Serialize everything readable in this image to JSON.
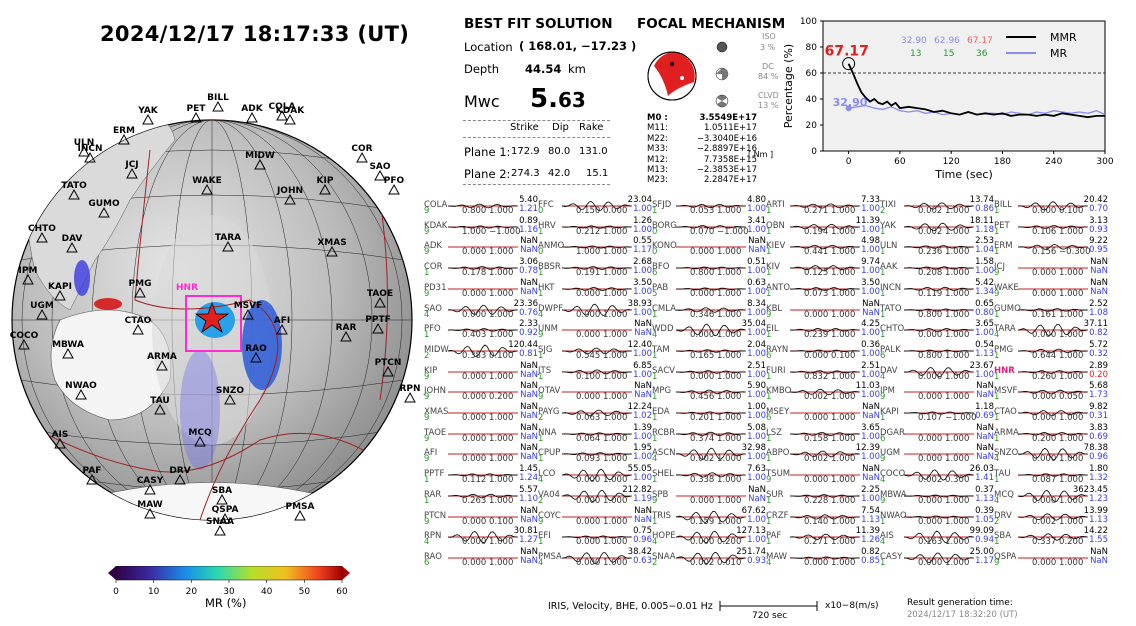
{
  "datetime": "2024/12/17  18:17:33 (UT)",
  "map": {
    "highlight_station": "HNR",
    "stations": [
      "YAK",
      "BILL",
      "PET",
      "ADK",
      "COLA",
      "KDAK",
      "ULN",
      "INCN",
      "ERM",
      "JCJ",
      "MIDW",
      "COR",
      "SAO",
      "PFO",
      "TATO",
      "WAKE",
      "JOHN",
      "KIP",
      "GUMO",
      "CHTO",
      "DAV",
      "TARA",
      "XMAS",
      "IPM",
      "PMG",
      "KAPI",
      "UGM",
      "AFI",
      "TAOE",
      "CTAO",
      "MSVF",
      "RAR",
      "PPTF",
      "COCO",
      "MBWA",
      "ARMA",
      "RAO",
      "PTCN",
      "NWAO",
      "TAU",
      "SNZO",
      "RPN",
      "AIS",
      "MCQ",
      "PAF",
      "DRV",
      "CASY",
      "SBA",
      "MAW",
      "QSPA",
      "SNAA",
      "PMSA"
    ]
  },
  "colorbar": {
    "label": "MR (%)",
    "ticks": [
      "0",
      "10",
      "20",
      "30",
      "40",
      "50",
      "60"
    ]
  },
  "solution": {
    "title": "BEST FIT SOLUTION",
    "location_label": "Location",
    "location_value": "( 168.01,  −17.23 )",
    "depth_label": "Depth",
    "depth_value": "44.54",
    "depth_unit": "km",
    "mw_label": "Mwc",
    "mw_int": "5.",
    "mw_dec": "63",
    "col_strike": "Strike",
    "col_dip": "Dip",
    "col_rake": "Rake",
    "planes": [
      {
        "label": "Plane 1:",
        "strike": "172.9",
        "dip": "80.0",
        "rake": "131.0"
      },
      {
        "label": "Plane 2:",
        "strike": "274.3",
        "dip": "42.0",
        "rake": "15.1"
      }
    ]
  },
  "focal": {
    "title": "FOCAL MECHANISM",
    "iso_label": "ISO",
    "iso_value": "3 %",
    "dc_label": "DC",
    "dc_value": "84 %",
    "clvd_label": "CLVD",
    "clvd_value": "13 %",
    "moments": [
      {
        "name": "M0",
        "sep": ":",
        "value": "3.5549E+17"
      },
      {
        "name": "M11:",
        "sep": "",
        "value": "1.0511E+17"
      },
      {
        "name": "M22:",
        "sep": "",
        "value": "−3.3040E+16"
      },
      {
        "name": "M33:",
        "sep": "",
        "value": "−2.8897E+16"
      },
      {
        "name": "M12:",
        "sep": "",
        "value": "7.7358E+15"
      },
      {
        "name": "M13:",
        "sep": "",
        "value": "−2.3853E+17"
      },
      {
        "name": "M23:",
        "sep": "",
        "value": "2.2847E+17"
      }
    ],
    "unit": "[ Nm ]"
  },
  "chart_data": {
    "type": "line",
    "title": "",
    "xlabel": "Time (sec)",
    "ylabel": "Percentage (%)",
    "xlim": [
      -30,
      300
    ],
    "ylim": [
      0,
      100
    ],
    "xticks": [
      0,
      60,
      120,
      180,
      240,
      300
    ],
    "yticks": [
      0,
      20,
      40,
      60,
      80,
      100
    ],
    "threshold": 60,
    "peak_label": "67.17",
    "mr_start_label": "32.90",
    "top_values": [
      "32.90",
      "62.96",
      "67.17"
    ],
    "top_counts": [
      "13",
      "15",
      "36"
    ],
    "series": [
      {
        "name": "MMR",
        "color": "#000000",
        "x": [
          0,
          5,
          10,
          15,
          20,
          25,
          30,
          35,
          40,
          45,
          50,
          55,
          60,
          70,
          80,
          90,
          100,
          110,
          120,
          130,
          140,
          150,
          160,
          170,
          180,
          190,
          200,
          210,
          220,
          230,
          240,
          250,
          260,
          270,
          280,
          290,
          300
        ],
        "y": [
          67.17,
          60,
          52,
          45,
          41,
          38,
          40,
          37,
          36,
          38,
          35,
          37,
          33,
          34,
          33,
          32,
          30,
          31,
          29,
          28,
          30,
          28,
          29,
          28,
          29,
          27,
          28,
          28,
          27,
          28,
          27,
          29,
          28,
          27,
          26,
          27,
          27
        ]
      },
      {
        "name": "MR",
        "color": "#8c8cf0",
        "x": [
          0,
          10,
          20,
          30,
          40,
          50,
          60,
          70,
          80,
          90,
          100,
          110,
          120,
          130,
          140,
          150,
          160,
          170,
          180,
          190,
          200,
          210,
          220,
          230,
          240,
          250,
          260,
          270,
          280,
          290,
          300
        ],
        "y": [
          32.9,
          34,
          35,
          33,
          32,
          34,
          31,
          30,
          31,
          29,
          30,
          28,
          29,
          28,
          30,
          28,
          29,
          29,
          28,
          30,
          29,
          28,
          30,
          29,
          31,
          30,
          29,
          30,
          29,
          31,
          28
        ]
      }
    ]
  },
  "stations_table": [
    [
      "COLA",
      "5.40",
      "9",
      "0.800",
      "1.000",
      "1.21"
    ],
    [
      "FFC",
      "23.04",
      "0",
      "0.150",
      "0.000",
      "1.00"
    ],
    [
      "SFJD",
      "4.80",
      "1",
      "0.053",
      "1.000",
      "1.00"
    ],
    [
      "ARTI",
      "7.33",
      "1",
      "0.271",
      "1.000",
      "1.00"
    ],
    [
      "TIXI",
      "13.74",
      "2",
      "0.002",
      "1.000",
      "0.86"
    ],
    [
      "BILL",
      "20.42",
      "1",
      "0.000",
      "0.100",
      "0.70"
    ],
    [
      "KDAK",
      "0.89",
      "9",
      "1.000",
      "−1.000",
      "1.16"
    ],
    [
      "HRV",
      "1.26",
      "1",
      "0.212",
      "1.000",
      "1.00"
    ],
    [
      "BORG",
      "3.41",
      "0",
      "0.070",
      "−1.000",
      "1.00"
    ],
    [
      "OBN",
      "11.39",
      "1",
      "0.194",
      "1.000",
      "1.00"
    ],
    [
      "YAK",
      "18.11",
      "1",
      "0.002",
      "1.000",
      "1.18"
    ],
    [
      "PET",
      "3.13",
      "1",
      "0.106",
      "1.000",
      "0.93"
    ],
    [
      "ADK",
      "NaN",
      "9",
      "0.000",
      "1.000",
      "NaN"
    ],
    [
      "ANMO",
      "0.55",
      "0",
      "1.000",
      "1.000",
      "1.17"
    ],
    [
      "KONO",
      "NaN",
      "0",
      "0.000",
      "1.000",
      "NaN"
    ],
    [
      "KIEV",
      "4.98",
      "1",
      "0.441",
      "1.000",
      "1.00"
    ],
    [
      "ULN",
      "2.53",
      "1",
      "0.236",
      "1.000",
      "1.04"
    ],
    [
      "ERM",
      "9.22",
      "1",
      "0.156",
      "−0.300",
      "0.95"
    ],
    [
      "COR",
      "3.06",
      "1",
      "0.178",
      "1.000",
      "0.78"
    ],
    [
      "BBSR",
      "2.68",
      "1",
      "0.191",
      "1.000",
      "1.00"
    ],
    [
      "BFO",
      "0.51",
      "6",
      "0.800",
      "1.000",
      "1.00"
    ],
    [
      "KIV",
      "9.74",
      "1",
      "0.125",
      "1.000",
      "1.00"
    ],
    [
      "AAK",
      "1.58",
      "1",
      "0.208",
      "1.000",
      "1.00"
    ],
    [
      "JCJ",
      "NaN",
      "9",
      "0.000",
      "1.000",
      "NaN"
    ],
    [
      "PD31",
      "NaN",
      "9",
      "0.000",
      "1.000",
      "NaN"
    ],
    [
      "HKT",
      "3.50",
      "1",
      "0.000",
      "1.000",
      "1.00"
    ],
    [
      "PAB",
      "0.63",
      "5",
      "0.000",
      "1.000",
      "1.00"
    ],
    [
      "ANTO",
      "3.50",
      "1",
      "0.073",
      "1.000",
      "1.00"
    ],
    [
      "INCN",
      "5.42",
      "1",
      "0.119",
      "1.000",
      "1.34"
    ],
    [
      "WAKE",
      "NaN",
      "9",
      "0.000",
      "1.000",
      "NaN"
    ],
    [
      "SAO",
      "23.36",
      "4",
      "0.000",
      "1.000",
      "0.76"
    ],
    [
      "DWPF",
      "38.93",
      "4",
      "0.000",
      "1.000",
      "1.00"
    ],
    [
      "CMLA",
      "8.34",
      "1",
      "0.346",
      "1.000",
      "1.00"
    ],
    [
      "KBL",
      "NaN",
      "9",
      "0.000",
      "1.000",
      "NaN"
    ],
    [
      "TATO",
      "0.65",
      "1",
      "0.800",
      "1.000",
      "0.80"
    ],
    [
      "GUMO",
      "2.52",
      "1",
      "0.161",
      "1.000",
      "1.08"
    ],
    [
      "PFO",
      "2.33",
      "1",
      "0.403",
      "1.000",
      "0.92"
    ],
    [
      "UNM",
      "NaN",
      "9",
      "0.000",
      "1.000",
      "NaN"
    ],
    [
      "WDD",
      "35.04",
      "4",
      "0.000",
      "1.000",
      "1.00"
    ],
    [
      "EIL",
      "4.25",
      "1",
      "0.239",
      "1.000",
      "1.00"
    ],
    [
      "CHTO",
      "3.65",
      "1",
      "0.000",
      "1.000",
      "1.00"
    ],
    [
      "TARA",
      "37.11",
      "4",
      "0.000",
      "1.000",
      "0.82"
    ],
    [
      "MIDW",
      "120.44",
      "2",
      "0.383",
      "0.100",
      "0.81"
    ],
    [
      "SJG",
      "12.40",
      "1",
      "0.545",
      "1.000",
      "1.00"
    ],
    [
      "TAM",
      "2.04",
      "1",
      "0.165",
      "1.000",
      "1.00"
    ],
    [
      "RAYN",
      "0.36",
      "6",
      "0.000",
      "0.100",
      "1.00"
    ],
    [
      "PALK",
      "0.54",
      "6",
      "0.800",
      "1.000",
      "1.13"
    ],
    [
      "PMG",
      "5.72",
      "1",
      "0.644",
      "1.000",
      "0.32"
    ],
    [
      "KIP",
      "NaN",
      "9",
      "0.000",
      "1.000",
      "NaN"
    ],
    [
      "JTS",
      "6.85",
      "1",
      "0.100",
      "1.000",
      "1.00"
    ],
    [
      "SACV",
      "2.51",
      "1",
      "0.000",
      "1.000",
      "1.00"
    ],
    [
      "FURI",
      "2.51",
      "1",
      "0.832",
      "1.000",
      "1.00"
    ],
    [
      "DAV",
      "23.67",
      "4",
      "0.000",
      "1.000",
      "1.00"
    ],
    [
      "HNR",
      "2.89",
      "1",
      "0.260",
      "1.000",
      "0.20"
    ],
    [
      "JOHN",
      "NaN",
      "9",
      "0.000",
      "0.200",
      "NaN"
    ],
    [
      "OTAV",
      "NaN",
      "9",
      "0.000",
      "1.000",
      "NaN"
    ],
    [
      "MPG",
      "5.90",
      "1",
      "0.456",
      "1.000",
      "1.00"
    ],
    [
      "KMBO",
      "11.03",
      "1",
      "0.002",
      "1.000",
      "1.00"
    ],
    [
      "IPM",
      "NaN",
      "9",
      "0.000",
      "1.000",
      "NaN"
    ],
    [
      "MSVF",
      "5.68",
      "1",
      "0.000",
      "0.050",
      "1.73"
    ],
    [
      "XMAS",
      "NaN",
      "9",
      "0.000",
      "1.000",
      "NaN"
    ],
    [
      "PAYG",
      "12.24",
      "2",
      "0.063",
      "1.000",
      "1.02"
    ],
    [
      "EDA",
      "1.00",
      "1",
      "0.201",
      "1.000",
      "1.00"
    ],
    [
      "MSEY",
      "NaN",
      "6",
      "0.000",
      "1.000",
      "NaN"
    ],
    [
      "KAPI",
      "1.18",
      "1",
      "0.107",
      "−1.000",
      "0.69"
    ],
    [
      "CTAO",
      "9.82",
      "1",
      "0.000",
      "1.000",
      "0.31"
    ],
    [
      "TAOE",
      "NaN",
      "9",
      "0.000",
      "1.000",
      "NaN"
    ],
    [
      "NNA",
      "1.39",
      "1",
      "0.064",
      "1.000",
      "1.00"
    ],
    [
      "RCBR",
      "5.08",
      "1",
      "0.374",
      "1.000",
      "1.00"
    ],
    [
      "LSZ",
      "3.65",
      "1",
      "0.158",
      "1.000",
      "1.00"
    ],
    [
      "DGAR",
      "NaN",
      "6",
      "0.000",
      "1.000",
      "NaN"
    ],
    [
      "ARMA",
      "3.83",
      "1",
      "0.200",
      "1.000",
      "0.69"
    ],
    [
      "AFI",
      "NaN",
      "9",
      "0.000",
      "1.000",
      "NaN"
    ],
    [
      "CPUP",
      "1.95",
      "1",
      "0.093",
      "1.000",
      "1.00"
    ],
    [
      "ASCN",
      "32.98",
      "4",
      "0.002",
      "1.000",
      "1.00"
    ],
    [
      "ABPO",
      "12.39",
      "1",
      "0.002",
      "1.000",
      "1.00"
    ],
    [
      "UGM",
      "NaN",
      "9",
      "0.000",
      "1.000",
      "NaN"
    ],
    [
      "SNZO",
      "78.38",
      "4",
      "0.000",
      "1.000",
      "0.96"
    ],
    [
      "PPTF",
      "1.45",
      "1",
      "0.112",
      "1.000",
      "1.24"
    ],
    [
      "LCO",
      "55.05",
      "4",
      "0.000",
      "1.000",
      "1.00"
    ],
    [
      "SHEL",
      "7.63",
      "1",
      "0.338",
      "1.000",
      "1.00"
    ],
    [
      "TSUM",
      "NaN",
      "9",
      "0.000",
      "1.000",
      "NaN"
    ],
    [
      "COCO",
      "26.03",
      "4",
      "0.002",
      "0.300",
      "1.41"
    ],
    [
      "TAU",
      "1.80",
      "1",
      "0.087",
      "1.000",
      "1.32"
    ],
    [
      "RAR",
      "5.57",
      "1",
      "0.263",
      "1.000",
      "1.10"
    ],
    [
      "VA04",
      "212.82",
      "2",
      "0.000",
      "1.000",
      "1.19"
    ],
    [
      "SPB",
      "NaN",
      "9",
      "0.000",
      "1.000",
      "NaN"
    ],
    [
      "SUR",
      "2.25",
      "1",
      "0.228",
      "1.000",
      "1.00"
    ],
    [
      "MBWA",
      "0.37",
      "9",
      "0.000",
      "1.000",
      "1.13"
    ],
    [
      "MCQ",
      "3623.45",
      "4",
      "0.000",
      "1.000",
      "1.23"
    ],
    [
      "PTCN",
      "NaN",
      "9",
      "0.000",
      "0.100",
      "NaN"
    ],
    [
      "COYC",
      "NaN",
      "9",
      "0.000",
      "1.000",
      "NaN"
    ],
    [
      "TRIS",
      "67.62",
      "1",
      "0.159",
      "1.000",
      "1.00"
    ],
    [
      "CRZF",
      "7.54",
      "1",
      "0.140",
      "1.000",
      "1.13"
    ],
    [
      "NWAO",
      "0.39",
      "1",
      "0.000",
      "1.000",
      "1.05"
    ],
    [
      "DRV",
      "13.99",
      "2",
      "0.002",
      "1.000",
      "1.13"
    ],
    [
      "RPN",
      "30.81",
      "4",
      "0.000",
      "1.000",
      "1.27"
    ],
    [
      "EFI",
      "0.75",
      "1",
      "0.000",
      "1.000",
      "0.96"
    ],
    [
      "HOPE",
      "127.13",
      "4",
      "0.000",
      "0.200",
      "1.00"
    ],
    [
      "PAF",
      "11.39",
      "1",
      "0.271",
      "1.000",
      "1.26"
    ],
    [
      "AIS",
      "99.09",
      "4",
      "0.163",
      "1.000",
      "0.94"
    ],
    [
      "SBA",
      "14.22",
      "1",
      "0.337",
      "0.200",
      "1.55"
    ],
    [
      "RAO",
      "NaN",
      "6",
      "0.000",
      "1.000",
      "NaN"
    ],
    [
      "PMSA",
      "38.42",
      "4",
      "0.000",
      "1.000",
      "0.63"
    ],
    [
      "SNAA",
      "251.74",
      "2",
      "0.002",
      "0.010",
      "0.93"
    ],
    [
      "MAW",
      "0.82",
      "4",
      "0.000",
      "1.000",
      "0.85"
    ],
    [
      "CASY",
      "25.00",
      "1",
      "0.000",
      "1.000",
      "1.17"
    ],
    [
      "QSPA",
      "NaN",
      "9",
      "0.000",
      "1.000",
      "NaN"
    ]
  ],
  "footer": {
    "info": "IRIS, Velocity,   BHE,  0.005−0.01 Hz",
    "scale_time": "720 sec",
    "scale_unit": "x10−8(m/s)",
    "result_label": "Result generation time:",
    "result_time": "2024/12/17 18:32:20 (UT)"
  }
}
